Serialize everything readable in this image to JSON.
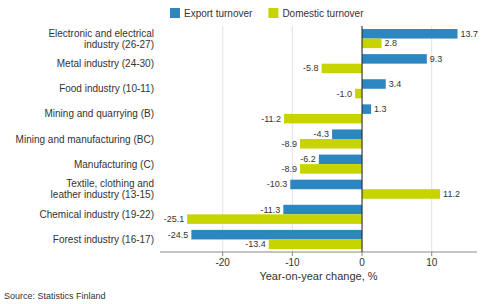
{
  "chart_data": {
    "type": "bar",
    "orientation": "horizontal",
    "categories": [
      "Forest industry (16-17)",
      "Chemical industry (19-22)",
      "Textile, clothing and\nleather industry (13-15)",
      "Manufacturing (C)",
      "Mining and manufacturing (BC)",
      "Mining and quarrying (B)",
      "Food industry (10-11)",
      "Metal industry (24-30)",
      "Electronic and electrical\nindustry (26-27)"
    ],
    "series": [
      {
        "name": "Export turnover",
        "color": "#2E86C1",
        "values": [
          -24.5,
          -11.3,
          -10.3,
          -6.2,
          -4.3,
          1.3,
          3.4,
          9.3,
          13.7
        ],
        "value_labels": [
          "-24.5",
          "-11.3",
          "-10.3",
          "-6.2",
          "-4.3",
          "1.3",
          "3.4",
          "9.3",
          "13.7"
        ]
      },
      {
        "name": "Domestic turnover",
        "color": "#C8D400",
        "values": [
          -13.4,
          -25.1,
          11.2,
          -8.9,
          -8.9,
          -11.2,
          -1.0,
          -5.8,
          2.8
        ],
        "value_labels": [
          "-13.4",
          "-25.1",
          "11.2",
          "-8.9",
          "-8.9",
          "-11.2",
          "-1.0",
          "-5.8",
          "2.8"
        ]
      }
    ],
    "x_label": "Year-on-year change, %",
    "xlim": [
      -29,
      16.5
    ],
    "xticks": [
      -20,
      -10,
      0,
      10
    ],
    "grid": true,
    "legend": "top",
    "data_labels": true,
    "annotations": [
      "Source: Statistics Finland"
    ]
  }
}
